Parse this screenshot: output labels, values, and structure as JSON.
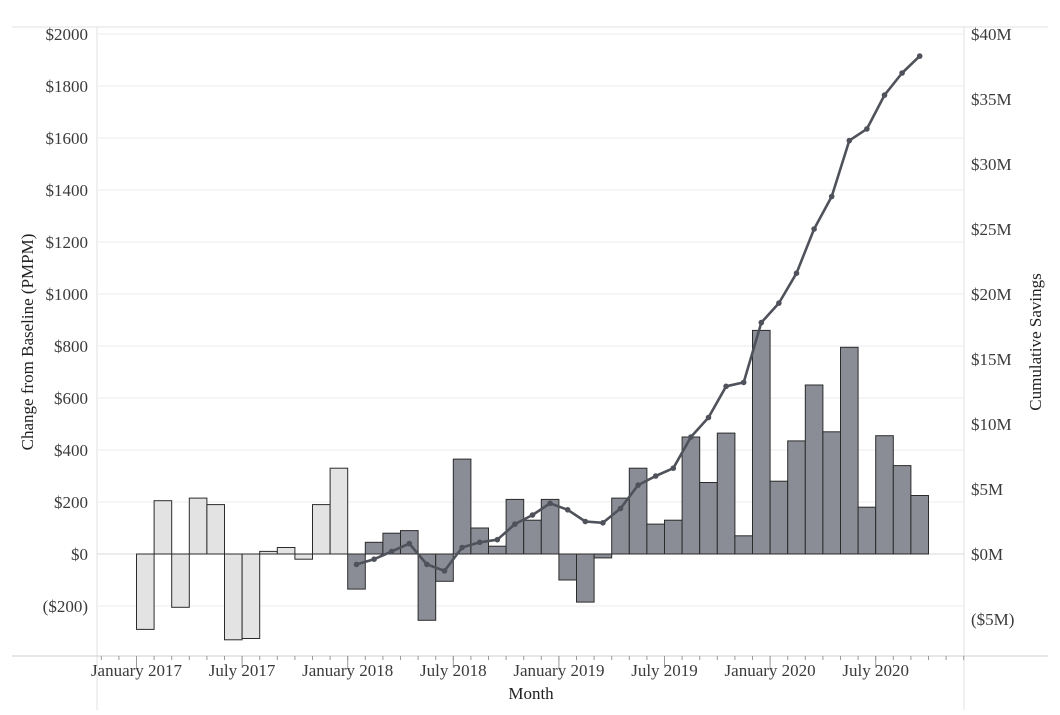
{
  "chart_data": {
    "type": "bar",
    "xlabel": "Month",
    "ylabel_left": "Change from Baseline (PMPM)",
    "ylabel_right": "Cumulative Savings",
    "ylim_left": [
      -300,
      2000
    ],
    "ylim_right": [
      -7.5,
      40
    ],
    "y_left_ticks": [
      "($200)",
      "$0",
      "$200",
      "$400",
      "$600",
      "$800",
      "$1000",
      "$1200",
      "$1400",
      "$1600",
      "$1800",
      "$2000"
    ],
    "y_left_tick_values": [
      -200,
      0,
      200,
      400,
      600,
      800,
      1000,
      1200,
      1400,
      1600,
      1800,
      2000
    ],
    "y_right_ticks": [
      "($5M)",
      "$0M",
      "$5M",
      "$10M",
      "$15M",
      "$20M",
      "$25M",
      "$30M",
      "$35M",
      "$40M"
    ],
    "y_right_tick_values": [
      -5,
      0,
      5,
      10,
      15,
      20,
      25,
      30,
      35,
      40
    ],
    "x_ticks": [
      "January 2017",
      "July 2017",
      "January 2018",
      "July 2018",
      "January 2019",
      "July 2019",
      "January 2020",
      "July 2020"
    ],
    "grid": true,
    "colors": {
      "baseline_bar": "#e3e3e3",
      "intervention_bar": "#8a8d96",
      "bar_stroke": "#2b2b2b",
      "line": "#4f525a",
      "grid": "#eeeeee"
    },
    "months": [
      "2017-01",
      "2017-02",
      "2017-03",
      "2017-04",
      "2017-05",
      "2017-06",
      "2017-07",
      "2017-08",
      "2017-09",
      "2017-10",
      "2017-11",
      "2017-12",
      "2018-01",
      "2018-02",
      "2018-03",
      "2018-04",
      "2018-05",
      "2018-06",
      "2018-07",
      "2018-08",
      "2018-09",
      "2018-10",
      "2018-11",
      "2018-12",
      "2019-01",
      "2019-02",
      "2019-03",
      "2019-04",
      "2019-05",
      "2019-06",
      "2019-07",
      "2019-08",
      "2019-09",
      "2019-10",
      "2019-11",
      "2019-12",
      "2020-01",
      "2020-02",
      "2020-03",
      "2020-04",
      "2020-05",
      "2020-06",
      "2020-07",
      "2020-08",
      "2020-09"
    ],
    "series": [
      {
        "kind": "bar",
        "values": [
          -290,
          205,
          -205,
          215,
          190,
          -330,
          -325,
          10,
          25,
          -20,
          190,
          330,
          -135,
          45,
          80,
          90,
          -255,
          -105,
          365,
          100,
          30,
          210,
          130,
          210,
          -100,
          -185,
          -15,
          215,
          330,
          115,
          130,
          450,
          275,
          465,
          70,
          860,
          280,
          435,
          650,
          470,
          795,
          180,
          455,
          340,
          225
        ],
        "phase": [
          "baseline",
          "baseline",
          "baseline",
          "baseline",
          "baseline",
          "baseline",
          "baseline",
          "baseline",
          "baseline",
          "baseline",
          "baseline",
          "baseline",
          "intervention",
          "intervention",
          "intervention",
          "intervention",
          "intervention",
          "intervention",
          "intervention",
          "intervention",
          "intervention",
          "intervention",
          "intervention",
          "intervention",
          "intervention",
          "intervention",
          "intervention",
          "intervention",
          "intervention",
          "intervention",
          "intervention",
          "intervention",
          "intervention",
          "intervention",
          "intervention",
          "intervention",
          "intervention",
          "intervention",
          "intervention",
          "intervention",
          "intervention",
          "intervention",
          "intervention",
          "intervention",
          "intervention"
        ]
      },
      {
        "kind": "line",
        "start_month": "2018-01",
        "values": [
          -0.8,
          -0.4,
          0.2,
          0.8,
          -0.8,
          -1.3,
          0.5,
          0.9,
          1.1,
          2.3,
          3.0,
          3.9,
          3.4,
          2.5,
          2.4,
          3.5,
          5.3,
          6.0,
          6.6,
          9.0,
          10.5,
          12.9,
          13.2,
          17.8,
          19.3,
          21.6,
          25.0,
          27.5,
          31.8,
          32.7,
          35.3,
          37.0,
          38.3
        ]
      }
    ]
  }
}
